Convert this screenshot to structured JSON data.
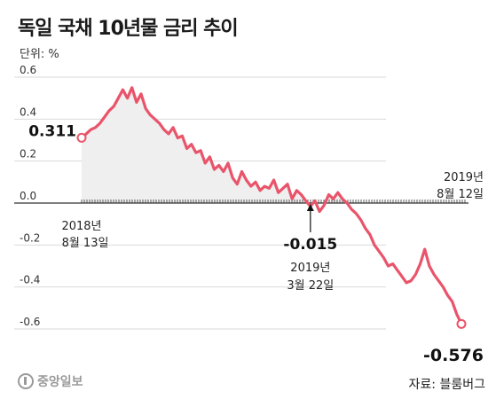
{
  "title": "독일 국채 10년물 금리 추이",
  "unit": "단위: %",
  "source": "자료: 블룸버그",
  "logo": "중앙일보",
  "colors": {
    "line": "#e9546b",
    "grid": "#d9d9d9",
    "fill": "#efefef",
    "axis": "#333333"
  },
  "annotations": {
    "start": {
      "value": "0.311",
      "date_line1": "2018년",
      "date_line2": "8월 13일"
    },
    "cross": {
      "value": "-0.015",
      "date_line1": "2019년",
      "date_line2": "3월 22일"
    },
    "end": {
      "value": "-0.576",
      "date_line1": "2019년",
      "date_line2": "8월 12일"
    }
  },
  "chart_data": {
    "type": "line",
    "title": "독일 국채 10년물 금리 추이",
    "ylabel": "단위: %",
    "ylim": [
      -0.65,
      0.6
    ],
    "yticks": [
      "0.6",
      "0.4",
      "0.2",
      "0.0",
      "-0.2",
      "-0.4",
      "-0.6"
    ],
    "grid": true,
    "x_start": "2018-08-13",
    "x_end": "2019-08-12",
    "series": [
      {
        "values": [
          0.311,
          0.33,
          0.35,
          0.36,
          0.38,
          0.41,
          0.44,
          0.46,
          0.5,
          0.54,
          0.5,
          0.55,
          0.48,
          0.52,
          0.45,
          0.42,
          0.4,
          0.38,
          0.35,
          0.33,
          0.36,
          0.31,
          0.32,
          0.26,
          0.28,
          0.24,
          0.25,
          0.19,
          0.22,
          0.16,
          0.18,
          0.15,
          0.19,
          0.12,
          0.09,
          0.15,
          0.11,
          0.08,
          0.1,
          0.06,
          0.08,
          0.07,
          0.11,
          0.05,
          0.07,
          0.09,
          0.02,
          0.06,
          0.04,
          0.01,
          -0.015,
          0.01,
          -0.04,
          -0.01,
          0.04,
          0.02,
          0.05,
          0.02,
          0.0,
          -0.03,
          -0.05,
          -0.08,
          -0.12,
          -0.15,
          -0.2,
          -0.23,
          -0.26,
          -0.3,
          -0.29,
          -0.32,
          -0.35,
          -0.38,
          -0.37,
          -0.34,
          -0.29,
          -0.22,
          -0.3,
          -0.34,
          -0.37,
          -0.4,
          -0.44,
          -0.47,
          -0.53,
          -0.576
        ]
      }
    ]
  }
}
